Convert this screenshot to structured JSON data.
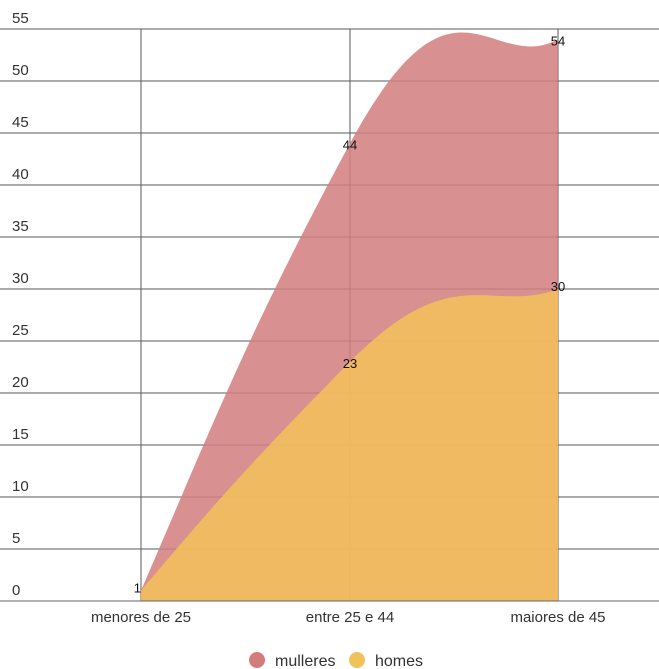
{
  "chart_data": {
    "type": "area",
    "stacked": false,
    "categories": [
      "menores de 25",
      "entre 25 e 44",
      "maiores de 45"
    ],
    "series": [
      {
        "name": "mulleres",
        "values": [
          1,
          44,
          54
        ],
        "color": "#d27c7c",
        "fill_opacity": 0.85
      },
      {
        "name": "homes",
        "values": [
          1,
          23,
          30
        ],
        "color": "#f2c25a",
        "fill_opacity": 0.85
      }
    ],
    "data_labels": [
      "1",
      "44",
      "54",
      "23",
      "30"
    ],
    "ylim": [
      0,
      55
    ],
    "yticks": [
      0,
      5,
      10,
      15,
      20,
      25,
      30,
      35,
      40,
      45,
      50,
      55
    ],
    "ytick_labels": [
      "0",
      "5",
      "10",
      "15",
      "20",
      "25",
      "30",
      "35",
      "40",
      "45",
      "50",
      "55"
    ],
    "grid": true,
    "legend_position": "bottom-center",
    "title": "",
    "xlabel": "",
    "ylabel": ""
  }
}
